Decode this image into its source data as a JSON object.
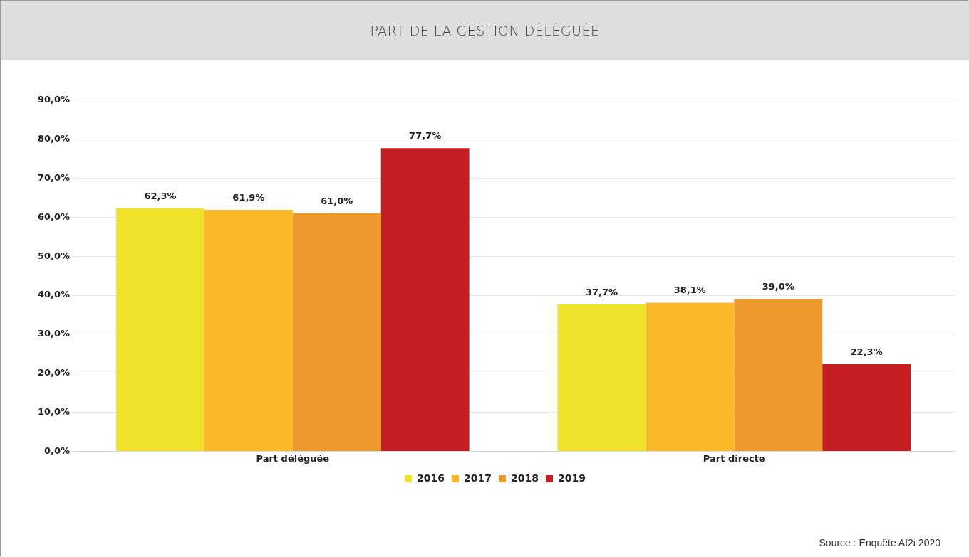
{
  "chart_data": {
    "type": "bar",
    "title": "PART DE LA GESTION DÉLÉGUÉE",
    "categories": [
      "Part déléguée",
      "Part directe"
    ],
    "series": [
      {
        "name": "2016",
        "color": "#f0e22a",
        "values": [
          62.3,
          37.7
        ],
        "value_labels": [
          "62,3%",
          "37,7%"
        ]
      },
      {
        "name": "2017",
        "color": "#fbb829",
        "values": [
          61.9,
          38.1
        ],
        "value_labels": [
          "61,9%",
          "38,1%"
        ]
      },
      {
        "name": "2018",
        "color": "#eb9a2b",
        "values": [
          61.0,
          39.0
        ],
        "value_labels": [
          "61,0%",
          "39,0%"
        ]
      },
      {
        "name": "2019",
        "color": "#c41e22",
        "values": [
          77.7,
          22.3
        ],
        "value_labels": [
          "77,7%",
          "22,3%"
        ]
      }
    ],
    "ylim": [
      0,
      90
    ],
    "yticks": [
      {
        "value": 0,
        "label": "0,0%"
      },
      {
        "value": 10,
        "label": "10,0%"
      },
      {
        "value": 20,
        "label": "20,0%"
      },
      {
        "value": 30,
        "label": "30,0%"
      },
      {
        "value": 40,
        "label": "40,0%"
      },
      {
        "value": 50,
        "label": "50,0%"
      },
      {
        "value": 60,
        "label": "60,0%"
      },
      {
        "value": 70,
        "label": "70,0%"
      },
      {
        "value": 80,
        "label": "80,0%"
      },
      {
        "value": 90,
        "label": "90,0%"
      }
    ],
    "grid": "y",
    "legend": "bottom",
    "annotations": [
      "Source : Enquête Af2i 2020"
    ]
  }
}
